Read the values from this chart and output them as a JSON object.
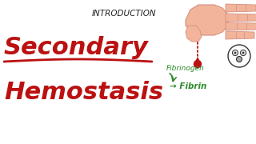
{
  "bg_color": "#ffffff",
  "title_text": "INTRODUCTION",
  "title_color": "#222222",
  "title_fontsize": 7.5,
  "secondary_text": "Secondary",
  "secondary_color": "#bb1111",
  "secondary_fontsize": 22,
  "hemostasis_text": "Hemostasis",
  "hemostasis_color": "#bb1111",
  "hemostasis_fontsize": 22,
  "fibrinogen_text": "Fibrinogen",
  "fibrinogen_color": "#2a8a2a",
  "fibrinogen_fontsize": 6.5,
  "fibrin_text": "→ Fibrin",
  "fibrin_color": "#2a8a2a",
  "fibrin_fontsize": 7.5,
  "underline_color": "#bb1111",
  "drop_color": "#bb1111",
  "hand_color": "#f2b49a",
  "hand_edge": "#d49080",
  "face_color": "#ffffff",
  "face_outline": "#333333",
  "fig_width": 3.2,
  "fig_height": 1.8,
  "dpi": 100
}
